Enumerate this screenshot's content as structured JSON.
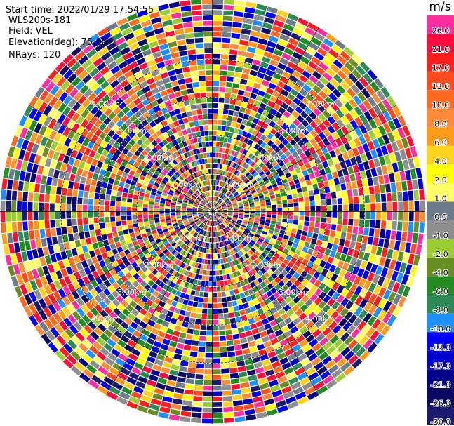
{
  "info": {
    "start_time": "Start time: 2022/01/29 17:54:55",
    "radar": "WLS200s-181",
    "field": "Field: VEL",
    "elevation": "Elevation(deg): 75.00",
    "nrays": "NRays: 120"
  },
  "chart_data": {
    "type": "heatmap",
    "projection": "polar PPI",
    "n_rays": 120,
    "range_rings_km": [
      1.0,
      2.0,
      3.0,
      4.0
    ],
    "range_ring_labels": [
      "1.00km",
      "2.00km",
      "3.00km",
      "4.00km"
    ],
    "max_range_km": 5.6,
    "field": "VEL",
    "colorbar": {
      "unit": "m/s",
      "tick_labels": [
        "26.0",
        "21.0",
        "17.0",
        "13.0",
        "10.0",
        "8.0",
        "6.0",
        "4.0",
        "2.0",
        "1.0",
        "0.0",
        "-1.0",
        "-2.0",
        "-4.0",
        "-6.0",
        "-8.0",
        "-10.0",
        "-13.0",
        "-17.0",
        "-21.0",
        "-26.0",
        "-30.0"
      ],
      "colors": [
        "#ff2ea0",
        "#ff0a3c",
        "#ff1e1e",
        "#ff4b1e",
        "#ff6a1e",
        "#ff8a3a",
        "#ff9a1a",
        "#ffd21e",
        "#ffff00",
        "#ffff66",
        "#6e7b8b",
        "#8e8e8e",
        "#9acd32",
        "#6b8e23",
        "#228b22",
        "#2e8b57",
        "#1e90ff",
        "#0000ff",
        "#0000cd",
        "#00008b",
        "#0a0a60",
        "#1a1a6e"
      ]
    }
  }
}
